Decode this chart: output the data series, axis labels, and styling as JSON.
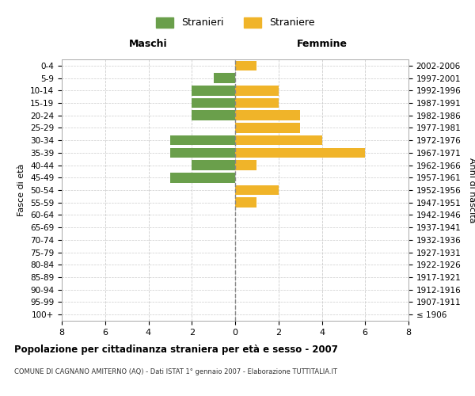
{
  "age_groups": [
    "100+",
    "95-99",
    "90-94",
    "85-89",
    "80-84",
    "75-79",
    "70-74",
    "65-69",
    "60-64",
    "55-59",
    "50-54",
    "45-49",
    "40-44",
    "35-39",
    "30-34",
    "25-29",
    "20-24",
    "15-19",
    "10-14",
    "5-9",
    "0-4"
  ],
  "birth_years": [
    "≤ 1906",
    "1907-1911",
    "1912-1916",
    "1917-1921",
    "1922-1926",
    "1927-1931",
    "1932-1936",
    "1937-1941",
    "1942-1946",
    "1947-1951",
    "1952-1956",
    "1957-1961",
    "1962-1966",
    "1967-1971",
    "1972-1976",
    "1977-1981",
    "1982-1986",
    "1987-1991",
    "1992-1996",
    "1997-2001",
    "2002-2006"
  ],
  "maschi": [
    0,
    0,
    0,
    0,
    0,
    0,
    0,
    0,
    0,
    0,
    0,
    3,
    2,
    3,
    3,
    0,
    2,
    2,
    2,
    1,
    0
  ],
  "femmine": [
    0,
    0,
    0,
    0,
    0,
    0,
    0,
    0,
    0,
    1,
    2,
    0,
    1,
    6,
    4,
    3,
    3,
    2,
    2,
    0,
    1
  ],
  "color_maschi": "#6a9f4b",
  "color_femmine": "#f0b429",
  "title": "Popolazione per cittadinanza straniera per età e sesso - 2007",
  "subtitle": "COMUNE DI CAGNANO AMITERNO (AQ) - Dati ISTAT 1° gennaio 2007 - Elaborazione TUTTITALIA.IT",
  "ylabel_left": "Fasce di età",
  "ylabel_right": "Anni di nascita",
  "xlabel_maschi": "Maschi",
  "xlabel_femmine": "Femmine",
  "legend_maschi": "Stranieri",
  "legend_femmine": "Straniere",
  "xlim": 8,
  "bar_height": 0.8,
  "background_color": "#ffffff",
  "grid_color": "#cccccc",
  "axis_line_color": "#aaaaaa"
}
